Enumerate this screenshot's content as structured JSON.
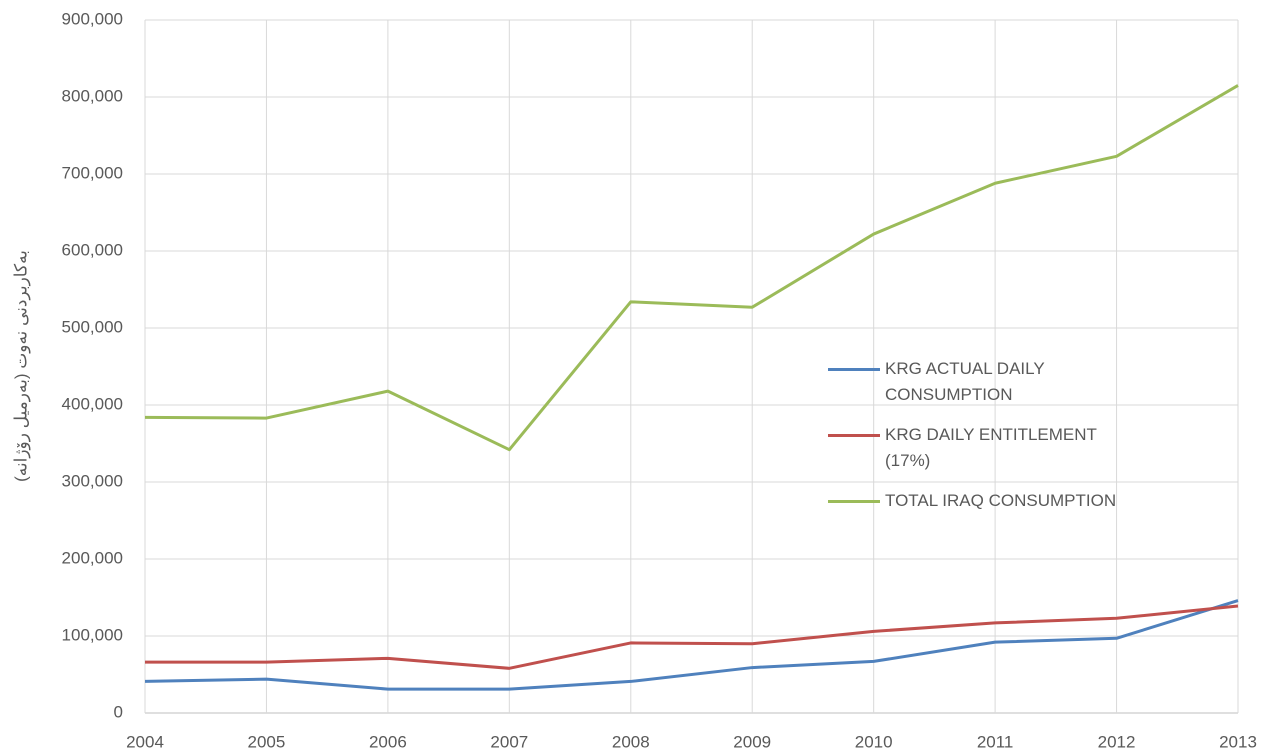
{
  "chart_data": {
    "type": "line",
    "y_label": "بەکاربردنی نەوت (بەرمیل رۆژانە)",
    "x": [
      2004,
      2005,
      2006,
      2007,
      2008,
      2009,
      2010,
      2011,
      2012,
      2013
    ],
    "series": [
      {
        "name": "KRG ACTUAL DAILY CONSUMPTION",
        "color": "#4f81bd",
        "values": [
          41000,
          44000,
          31000,
          31000,
          41000,
          59000,
          67000,
          92000,
          97000,
          146000
        ]
      },
      {
        "name": "KRG DAILY ENTITLEMENT (17%)",
        "color": "#c0504d",
        "values": [
          66000,
          66000,
          71000,
          58000,
          91000,
          90000,
          106000,
          117000,
          123000,
          139000
        ]
      },
      {
        "name": "TOTAL IRAQ CONSUMPTION",
        "color": "#9bbb59",
        "values": [
          384000,
          383000,
          418000,
          342000,
          534000,
          527000,
          622000,
          688000,
          723000,
          815000
        ]
      }
    ],
    "xlim": [
      2004,
      2013
    ],
    "xticks": [
      2004,
      2005,
      2006,
      2007,
      2008,
      2009,
      2010,
      2011,
      2012,
      2013
    ],
    "ylim": [
      0,
      900000
    ],
    "yticks": [
      0,
      {
        "value": 100000,
        "label": "100,000"
      },
      {
        "value": 200000,
        "label": "200,000"
      },
      {
        "value": 300000,
        "label": "300,000"
      },
      {
        "value": 400000,
        "label": "400,000"
      },
      {
        "value": 500000,
        "label": "500,000"
      },
      {
        "value": 600000,
        "label": "600,000"
      },
      {
        "value": 700000,
        "label": "700,000"
      },
      {
        "value": 800000,
        "label": "800,000"
      },
      {
        "value": 900000,
        "label": "900,000"
      }
    ],
    "grid": true
  }
}
